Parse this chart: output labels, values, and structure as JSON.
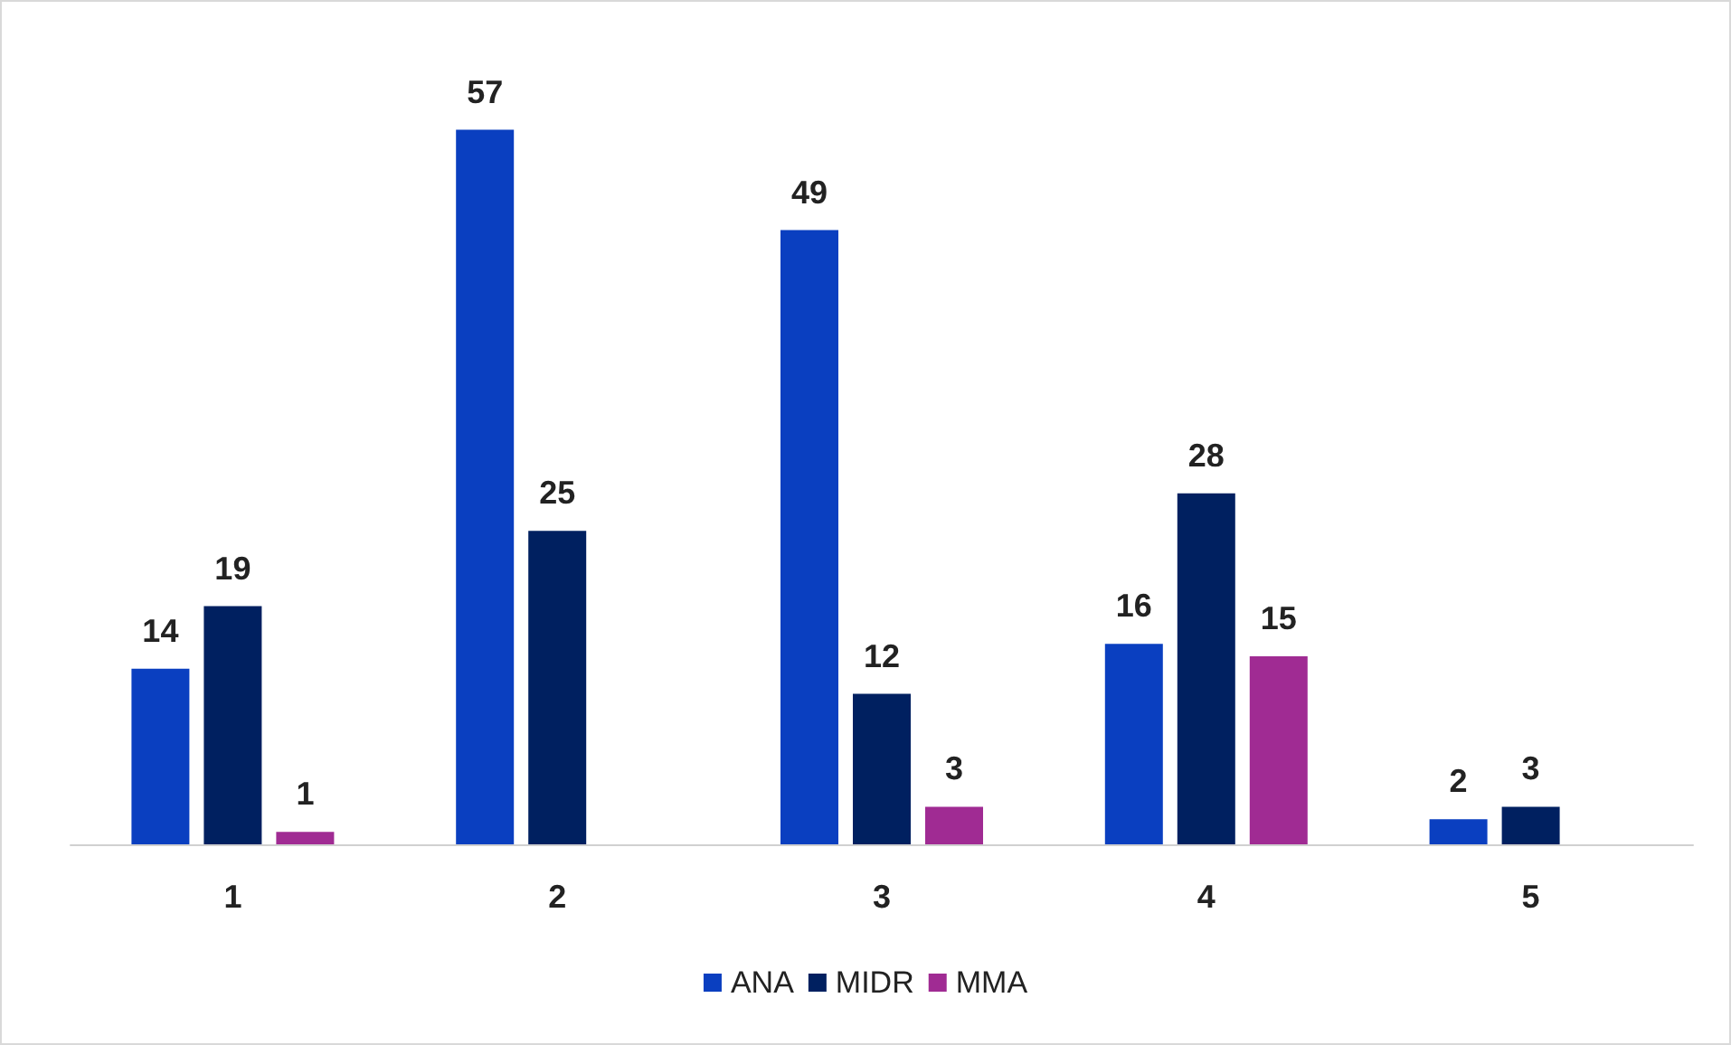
{
  "chart_data": {
    "type": "bar",
    "categories": [
      "1",
      "2",
      "3",
      "4",
      "5"
    ],
    "series": [
      {
        "name": "ANA",
        "color": "#0a3fc0",
        "values": [
          14,
          57,
          49,
          16,
          2
        ]
      },
      {
        "name": "MIDR",
        "color": "#002060",
        "values": [
          19,
          25,
          12,
          28,
          3
        ]
      },
      {
        "name": "MMA",
        "color": "#a02b93",
        "values": [
          1,
          null,
          3,
          15,
          null
        ]
      }
    ],
    "data_labels": true,
    "legend": "bottom"
  }
}
